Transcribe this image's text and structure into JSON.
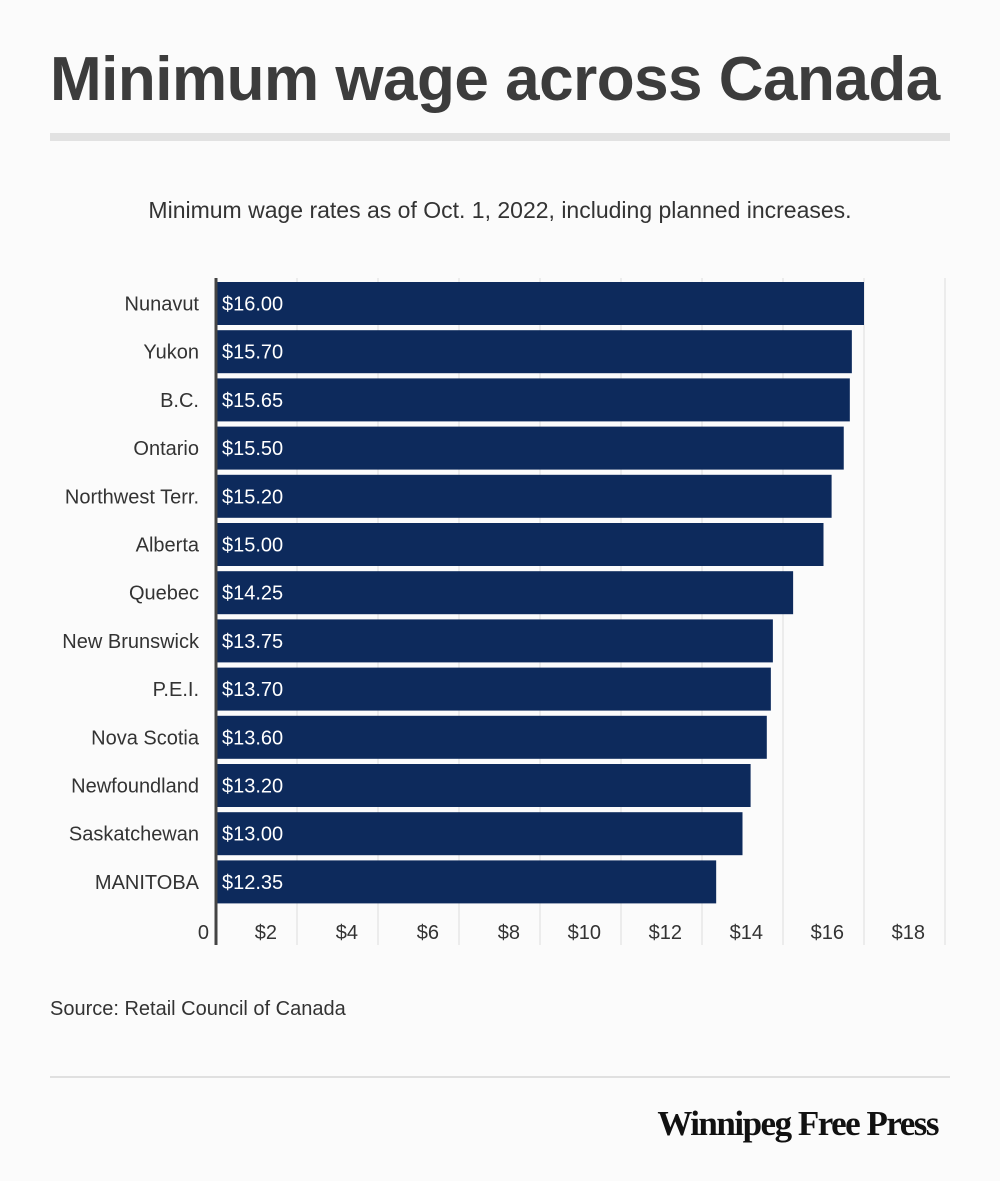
{
  "header": {
    "title": "Minimum wage across Canada",
    "subtitle": "Minimum wage rates as of Oct. 1, 2022, including planned increases."
  },
  "footer": {
    "source": "Source: Retail Council of Canada",
    "logo": "Winnipeg Free Press"
  },
  "colors": {
    "bar": "#0d2a5c",
    "grid": "#dcdcdc",
    "axis": "#444444",
    "bar_label": "#ffffff"
  },
  "chart_data": {
    "type": "bar",
    "orientation": "horizontal",
    "title": "Minimum wage across Canada",
    "subtitle": "Minimum wage rates as of Oct. 1, 2022, including planned increases.",
    "categories": [
      "Nunavut",
      "Yukon",
      "B.C.",
      "Ontario",
      "Northwest Terr.",
      "Alberta",
      "Quebec",
      "New Brunswick",
      "P.E.I.",
      "Nova Scotia",
      "Newfoundland",
      "Saskatchewan",
      "MANITOBA"
    ],
    "values": [
      16.0,
      15.7,
      15.65,
      15.5,
      15.2,
      15.0,
      14.25,
      13.75,
      13.7,
      13.6,
      13.2,
      13.0,
      12.35
    ],
    "data_labels": [
      "$16.00",
      "$15.70",
      "$15.65",
      "$15.50",
      "$15.20",
      "$15.00",
      "$14.25",
      "$13.75",
      "$13.70",
      "$13.60",
      "$13.20",
      "$13.00",
      "$12.35"
    ],
    "xlim": [
      0,
      18
    ],
    "xticks": [
      0,
      2,
      4,
      6,
      8,
      10,
      12,
      14,
      16,
      18
    ],
    "xtick_labels": [
      "0",
      "$2",
      "$4",
      "$6",
      "$8",
      "$10",
      "$12",
      "$14",
      "$16",
      "$18"
    ],
    "xlabel": "",
    "ylabel": "",
    "grid": true,
    "legend": "none"
  }
}
